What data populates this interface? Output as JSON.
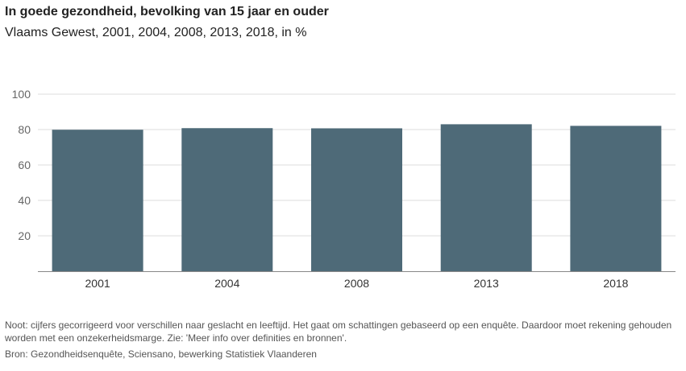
{
  "colors": {
    "bar": "#4e6a78",
    "grid": "#dddddd",
    "axis": "#888888"
  },
  "chart_data": {
    "type": "bar",
    "title": "In goede gezondheid, bevolking van 15 jaar en ouder",
    "subtitle": "Vlaams Gewest, 2001, 2004, 2008, 2013, 2018, in %",
    "categories": [
      "2001",
      "2004",
      "2008",
      "2013",
      "2018"
    ],
    "values": [
      79.9,
      80.8,
      80.7,
      83.0,
      82.1
    ],
    "xlabel": "",
    "ylabel": "",
    "ylim": [
      0,
      100
    ],
    "yticks": [
      20,
      40,
      60,
      80,
      100
    ],
    "grid": true,
    "legend": "none"
  },
  "footer": {
    "note": "Noot: cijfers gecorrigeerd voor verschillen naar geslacht en leeftijd. Het gaat om schattingen gebaseerd op een enquête. Daardoor moet rekening gehouden worden met een onzekerheidsmarge. Zie: 'Meer info over definities en bronnen'.",
    "source": "Bron: Gezondheidsenquête, Sciensano, bewerking Statistiek Vlaanderen"
  }
}
